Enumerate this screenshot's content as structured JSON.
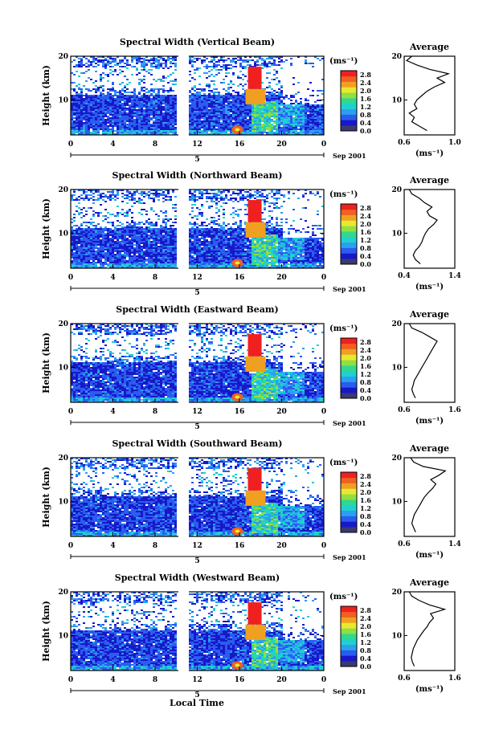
{
  "chart_data": {
    "type": "heatmap",
    "xlabel": "Local Time",
    "date_label": "Sep 2001",
    "day_label": "5",
    "ylabel": "Height (km)",
    "x_ticks": [
      "0",
      "4",
      "8",
      "12",
      "16",
      "20",
      "0"
    ],
    "x_range_hours": [
      0,
      24
    ],
    "data_gap_hours": [
      10.6,
      11.3
    ],
    "y_ticks": [
      "20",
      "10"
    ],
    "y_range_km": [
      2,
      20
    ],
    "colorbar": {
      "unit": "(ms⁻¹)",
      "labels": [
        "2.8",
        "2.4",
        "2.0",
        "1.6",
        "1.2",
        "0.8",
        "0.4",
        "0.0"
      ],
      "range": [
        0,
        3.0
      ],
      "colors": [
        "#3a3a70",
        "#1818c8",
        "#2a5cf0",
        "#2aa0f0",
        "#20d0d0",
        "#30d890",
        "#90e040",
        "#e8e830",
        "#f0a020",
        "#f06020",
        "#f02020"
      ]
    },
    "average_title": "Average",
    "average_unit": "(ms⁻¹)",
    "panels": [
      {
        "title": "Spectral Width (Vertical Beam)",
        "avg_range": [
          0.6,
          1.0
        ],
        "avg_ticks": [
          "0.6",
          "1.0"
        ],
        "profile": [
          [
            3,
            0.78
          ],
          [
            4,
            0.72
          ],
          [
            5,
            0.66
          ],
          [
            6,
            0.68
          ],
          [
            7,
            0.64
          ],
          [
            8,
            0.7
          ],
          [
            9,
            0.68
          ],
          [
            10,
            0.7
          ],
          [
            11,
            0.74
          ],
          [
            12,
            0.78
          ],
          [
            13,
            0.84
          ],
          [
            14,
            0.92
          ],
          [
            15,
            0.86
          ],
          [
            16,
            0.95
          ],
          [
            17,
            0.8
          ],
          [
            18,
            0.7
          ],
          [
            19,
            0.62
          ],
          [
            20,
            0.66
          ]
        ]
      },
      {
        "title": "Spectral Width (Northward Beam)",
        "avg_range": [
          0.4,
          1.4
        ],
        "avg_ticks": [
          "0.4",
          "1.4"
        ],
        "profile": [
          [
            3,
            0.72
          ],
          [
            4,
            0.62
          ],
          [
            5,
            0.58
          ],
          [
            6,
            0.62
          ],
          [
            7,
            0.7
          ],
          [
            8,
            0.75
          ],
          [
            9,
            0.78
          ],
          [
            10,
            0.82
          ],
          [
            11,
            0.88
          ],
          [
            12,
            0.98
          ],
          [
            13,
            1.05
          ],
          [
            14,
            0.9
          ],
          [
            15,
            0.85
          ],
          [
            16,
            0.95
          ],
          [
            17,
            0.8
          ],
          [
            18,
            0.7
          ],
          [
            19,
            0.55
          ],
          [
            20,
            0.5
          ]
        ]
      },
      {
        "title": "Spectral Width (Eastward Beam)",
        "avg_range": [
          0.6,
          1.6
        ],
        "avg_ticks": [
          "0.6",
          "1.6"
        ],
        "profile": [
          [
            3,
            0.82
          ],
          [
            4,
            0.78
          ],
          [
            5,
            0.75
          ],
          [
            6,
            0.78
          ],
          [
            7,
            0.8
          ],
          [
            8,
            0.85
          ],
          [
            9,
            0.9
          ],
          [
            10,
            0.95
          ],
          [
            11,
            1.0
          ],
          [
            12,
            1.05
          ],
          [
            13,
            1.1
          ],
          [
            14,
            1.15
          ],
          [
            15,
            1.2
          ],
          [
            16,
            1.25
          ],
          [
            17,
            1.1
          ],
          [
            18,
            0.95
          ],
          [
            19,
            0.75
          ],
          [
            20,
            0.7
          ]
        ]
      },
      {
        "title": "Spectral Width (Southward Beam)",
        "avg_range": [
          0.6,
          1.4
        ],
        "avg_ticks": [
          "0.6",
          "1.4"
        ],
        "profile": [
          [
            3,
            0.78
          ],
          [
            4,
            0.75
          ],
          [
            5,
            0.72
          ],
          [
            6,
            0.74
          ],
          [
            7,
            0.76
          ],
          [
            8,
            0.8
          ],
          [
            9,
            0.84
          ],
          [
            10,
            0.88
          ],
          [
            11,
            0.92
          ],
          [
            12,
            0.98
          ],
          [
            13,
            1.05
          ],
          [
            14,
            1.1
          ],
          [
            15,
            1.02
          ],
          [
            16,
            1.15
          ],
          [
            17,
            1.25
          ],
          [
            18,
            0.9
          ],
          [
            19,
            0.75
          ],
          [
            20,
            0.7
          ]
        ]
      },
      {
        "title": "Spectral Width (Westward Beam)",
        "avg_range": [
          0.6,
          1.6
        ],
        "avg_ticks": [
          "0.6",
          "1.6"
        ],
        "profile": [
          [
            3,
            0.8
          ],
          [
            4,
            0.76
          ],
          [
            5,
            0.74
          ],
          [
            6,
            0.76
          ],
          [
            7,
            0.78
          ],
          [
            8,
            0.82
          ],
          [
            9,
            0.86
          ],
          [
            10,
            0.92
          ],
          [
            11,
            0.98
          ],
          [
            12,
            1.05
          ],
          [
            13,
            1.1
          ],
          [
            14,
            1.18
          ],
          [
            15,
            1.12
          ],
          [
            16,
            1.4
          ],
          [
            17,
            1.1
          ],
          [
            18,
            0.9
          ],
          [
            19,
            0.75
          ],
          [
            20,
            0.7
          ]
        ]
      }
    ]
  }
}
